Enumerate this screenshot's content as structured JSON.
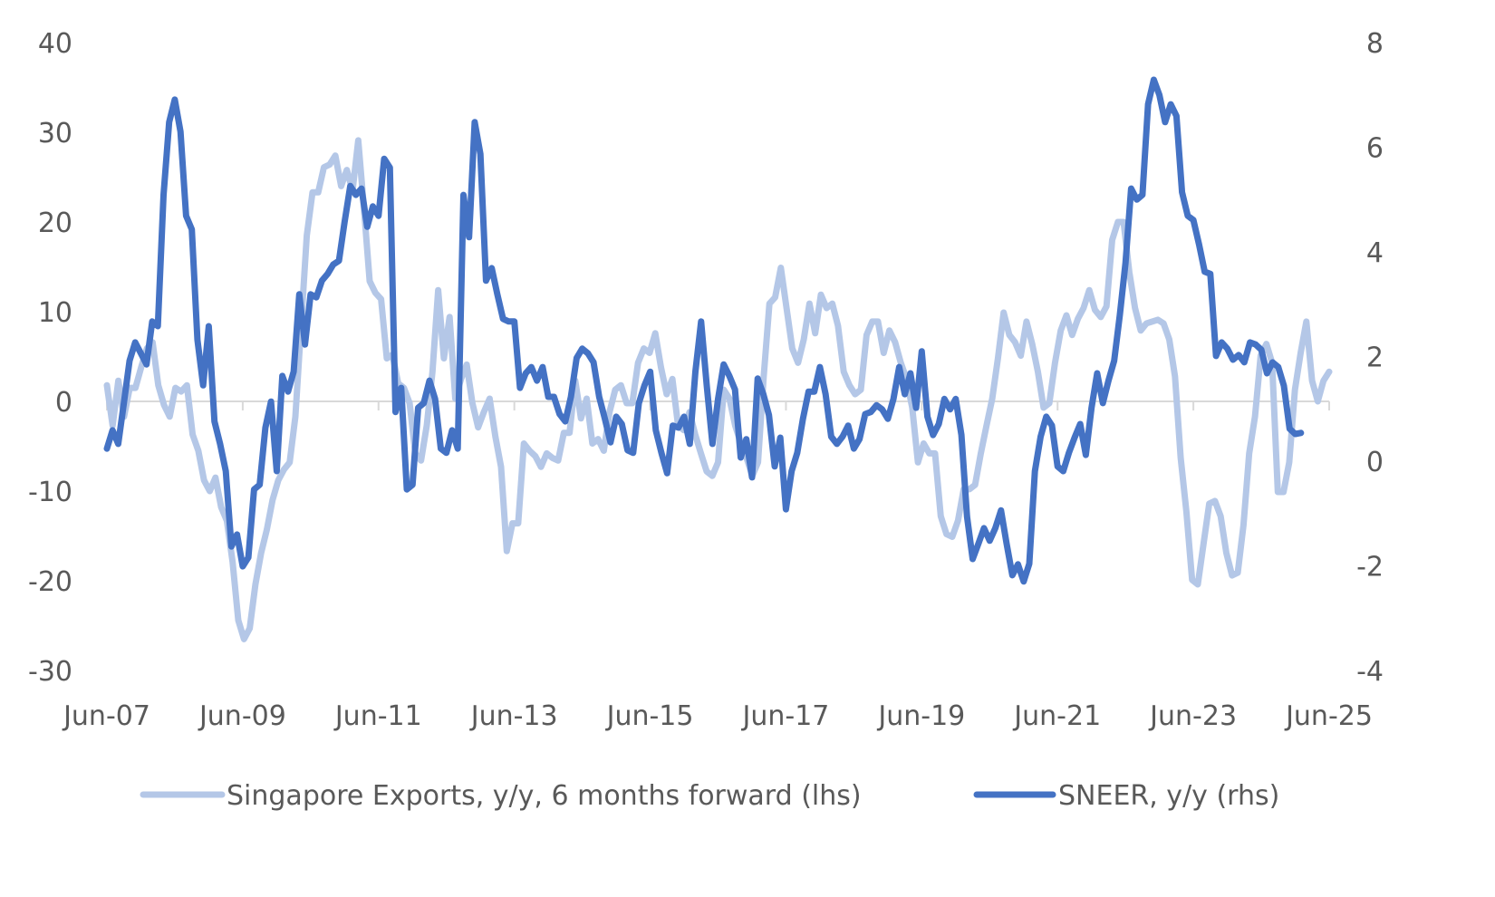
{
  "chart_data": {
    "type": "line",
    "title": "",
    "xlabel": "",
    "ylabel_left": "",
    "ylabel_right": "",
    "x_tick_labels": [
      "Jun-07",
      "Jun-09",
      "Jun-11",
      "Jun-13",
      "Jun-15",
      "Jun-17",
      "Jun-19",
      "Jun-21",
      "Jun-23",
      "Jun-25"
    ],
    "x_range": [
      "2007-06",
      "2025-06"
    ],
    "y_left": {
      "ticks": [
        40,
        30,
        20,
        10,
        0,
        -10,
        -20,
        -30
      ],
      "range": [
        -30,
        40
      ]
    },
    "y_right": {
      "ticks": [
        8,
        6,
        4,
        2,
        0,
        -2,
        -4
      ],
      "range": [
        -4,
        8
      ]
    },
    "grid": false,
    "legend_position": "bottom",
    "series": [
      {
        "name": "Singapore Exports, y/y, 6 months forward (lhs)",
        "axis": "left",
        "color": "#b4c7e7",
        "frequency": "monthly",
        "start": "2007-06",
        "end": "2025-06",
        "values": [
          1.8,
          -2.7,
          2.3,
          -1.7,
          1.5,
          1.5,
          3.8,
          5.9,
          6.6,
          1.8,
          -0.4,
          -1.7,
          1.5,
          1.1,
          1.8,
          -3.7,
          -5.5,
          -8.8,
          -10.0,
          -8.5,
          -11.8,
          -13.3,
          -17.9,
          -24.4,
          -26.5,
          -25.3,
          -20.4,
          -16.9,
          -14.3,
          -11.0,
          -8.8,
          -7.6,
          -6.8,
          -1.7,
          8.4,
          18.5,
          23.3,
          23.3,
          26.1,
          26.4,
          27.4,
          24.0,
          25.8,
          23.5,
          29.1,
          21.5,
          13.4,
          12.1,
          11.4,
          4.8,
          5.2,
          2.0,
          1.5,
          -0.2,
          -5.8,
          -6.6,
          -2.7,
          3.3,
          12.4,
          4.8,
          9.4,
          0.3,
          2.5,
          4.1,
          -0.2,
          -2.9,
          -1.2,
          0.3,
          -3.9,
          -7.3,
          -16.7,
          -13.6,
          -13.6,
          -4.7,
          -5.5,
          -6.1,
          -7.3,
          -5.8,
          -6.3,
          -6.6,
          -3.5,
          -3.5,
          2.3,
          -1.9,
          0.3,
          -4.7,
          -4.2,
          -5.5,
          -1.2,
          1.3,
          1.8,
          -0.2,
          -0.2,
          4.3,
          5.9,
          5.4,
          7.6,
          3.8,
          0.8,
          2.5,
          -2.7,
          -3.2,
          -1.2,
          -3.7,
          -5.8,
          -7.8,
          -8.3,
          -6.8,
          1.3,
          0.3,
          -2.7,
          -4.7,
          -6.3,
          -8.3,
          -6.8,
          2.8,
          10.9,
          11.6,
          14.9,
          10.4,
          5.9,
          4.3,
          6.9,
          10.9,
          7.6,
          11.9,
          10.4,
          10.9,
          8.4,
          3.3,
          1.8,
          0.8,
          1.3,
          7.4,
          8.9,
          8.9,
          5.4,
          7.9,
          6.6,
          4.3,
          2.5,
          -0.7,
          -6.8,
          -4.7,
          -5.8,
          -5.8,
          -12.8,
          -14.8,
          -15.1,
          -13.3,
          -9.8,
          -9.8,
          -9.3,
          -5.8,
          -2.7,
          0.3,
          4.8,
          9.9,
          7.4,
          6.6,
          5.1,
          8.9,
          6.4,
          3.3,
          -0.7,
          -0.2,
          4.3,
          7.9,
          9.6,
          7.4,
          9.2,
          10.4,
          12.4,
          10.2,
          9.4,
          10.6,
          18.0,
          20.0,
          20.0,
          14.4,
          10.4,
          7.9,
          8.7,
          8.9,
          9.1,
          8.7,
          6.9,
          2.8,
          -6.3,
          -12.3,
          -19.9,
          -20.4,
          -15.9,
          -11.4,
          -11.1,
          -12.8,
          -16.9,
          -19.4,
          -19.1,
          -13.8,
          -5.8,
          -1.7,
          5.1,
          6.4,
          4.3,
          -10.1,
          -10.1,
          -6.8,
          1.3,
          5.4,
          8.9,
          2.3,
          0.0,
          2.3,
          3.3
        ]
      },
      {
        "name": "SNEER, y/y (rhs)",
        "axis": "right",
        "color": "#4472c4",
        "frequency": "monthly",
        "start": "2007-06",
        "end": "2025-01",
        "values": [
          0.24,
          0.59,
          0.33,
          1.11,
          1.92,
          2.27,
          2.06,
          1.85,
          2.67,
          2.58,
          5.09,
          6.48,
          6.91,
          6.3,
          4.69,
          4.43,
          2.32,
          1.45,
          2.58,
          0.76,
          0.33,
          -0.19,
          -1.63,
          -1.4,
          -2.01,
          -1.84,
          -0.54,
          -0.45,
          0.64,
          1.14,
          -0.19,
          1.63,
          1.33,
          1.71,
          3.19,
          2.23,
          3.19,
          3.13,
          3.45,
          3.58,
          3.76,
          3.83,
          4.57,
          5.26,
          5.09,
          5.21,
          4.48,
          4.87,
          4.69,
          5.78,
          5.61,
          0.94,
          1.4,
          -0.54,
          -0.45,
          1.02,
          1.11,
          1.54,
          1.19,
          0.24,
          0.16,
          0.59,
          0.24,
          5.09,
          4.28,
          6.48,
          5.87,
          3.45,
          3.69,
          3.19,
          2.72,
          2.67,
          2.67,
          1.4,
          1.68,
          1.8,
          1.54,
          1.8,
          1.23,
          1.23,
          0.9,
          0.76,
          1.23,
          1.97,
          2.15,
          2.06,
          1.89,
          1.23,
          0.81,
          0.36,
          0.85,
          0.71,
          0.21,
          0.16,
          1.11,
          1.45,
          1.71,
          0.59,
          0.16,
          -0.23,
          0.68,
          0.64,
          0.85,
          0.33,
          1.71,
          2.67,
          1.45,
          0.33,
          1.19,
          1.85,
          1.63,
          1.37,
          0.07,
          0.42,
          -0.31,
          1.58,
          1.28,
          0.88,
          -0.1,
          0.45,
          -0.92,
          -0.19,
          0.16,
          0.81,
          1.33,
          1.33,
          1.8,
          1.28,
          0.47,
          0.33,
          0.47,
          0.68,
          0.24,
          0.42,
          0.9,
          0.94,
          1.07,
          0.99,
          0.81,
          1.19,
          1.8,
          1.28,
          1.68,
          1.02,
          2.1,
          0.85,
          0.5,
          0.71,
          1.19,
          0.99,
          1.19,
          0.5,
          -1.06,
          -1.87,
          -1.58,
          -1.28,
          -1.52,
          -1.28,
          -0.94,
          -1.58,
          -2.18,
          -1.97,
          -2.3,
          -1.96,
          -0.19,
          0.47,
          0.85,
          0.68,
          -0.1,
          -0.19,
          0.16,
          0.45,
          0.71,
          0.12,
          1.02,
          1.68,
          1.11,
          1.54,
          1.92,
          2.79,
          3.79,
          5.21,
          5.0,
          5.09,
          6.82,
          7.29,
          7.0,
          6.48,
          6.82,
          6.6,
          5.14,
          4.69,
          4.61,
          4.14,
          3.62,
          3.58,
          2.01,
          2.27,
          2.15,
          1.94,
          2.03,
          1.89,
          2.27,
          2.23,
          2.13,
          1.68,
          1.89,
          1.8,
          1.44,
          0.62,
          0.52,
          0.54
        ]
      }
    ]
  }
}
